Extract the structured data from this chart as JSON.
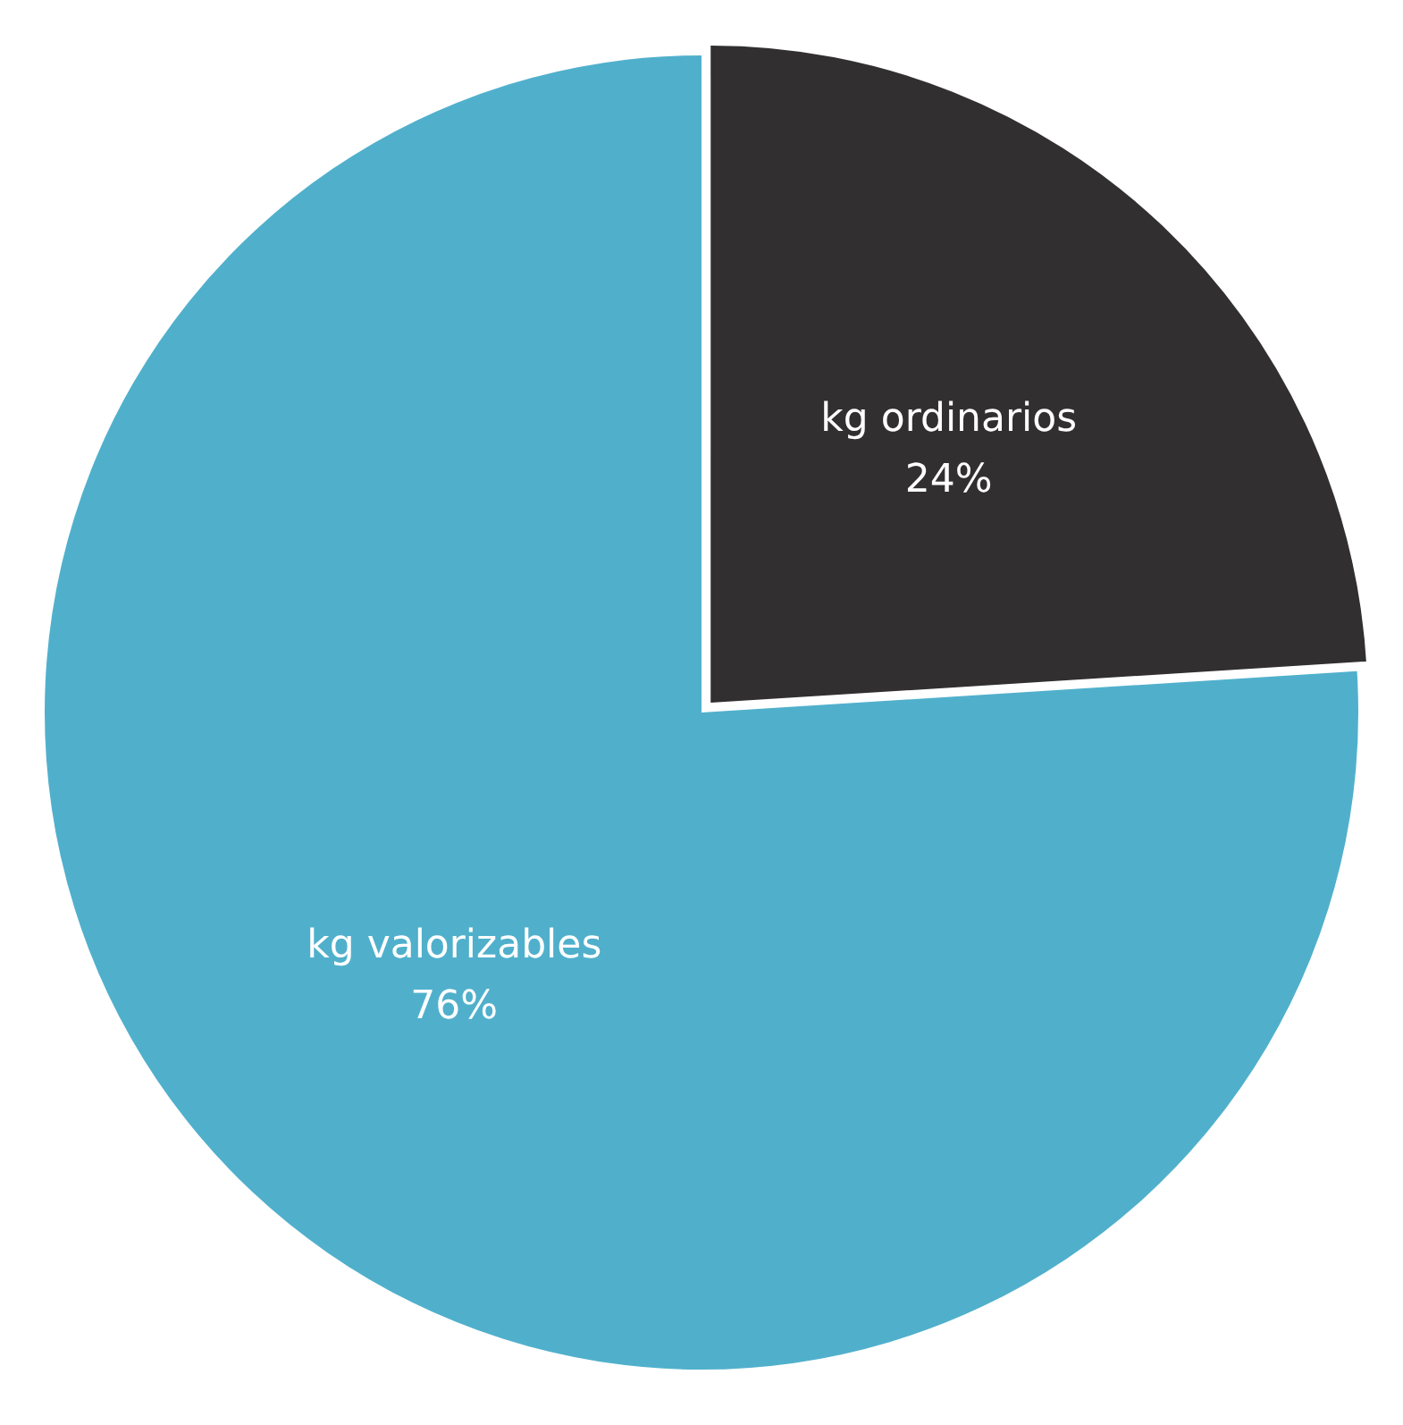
{
  "chart_data": {
    "type": "pie",
    "categories": [
      "kg ordinarios",
      "kg valorizables"
    ],
    "values": [
      24,
      76
    ],
    "colors": [
      "#322f30",
      "#50b0cc"
    ],
    "value_labels": [
      "24%",
      "76%"
    ],
    "legend": false
  }
}
